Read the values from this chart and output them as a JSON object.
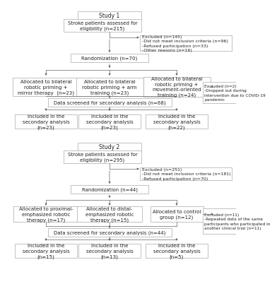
{
  "bg_color": "#ffffff",
  "box_color": "#ffffff",
  "box_edge": "#aaaaaa",
  "text_color": "#222222",
  "font_size": 5.0,
  "study1": {
    "title": "Study 1",
    "assess": "Stroke patients assessed for\neligibility (n=215)",
    "excluded": "Excluded (n=145)\n-Did not meet inclusion criteria (n=96)\n-Refused participation (n=33)\n-Other reasons (n=16)",
    "random": "Randomization (n=70)",
    "arm1": "Allocated to bilateral\nrobotic priming +\nmirror therapy  (n=23)",
    "arm2": "Allocated to bilateral\nrobotic priming + arm\ntraining (n=23)",
    "arm3": "Allocated to bilateral\nrobotic priming +\nmovement-oriented\ntraining (n=24)",
    "excl_side": "Excluded (n=2)\n-Dropped out during\nintervention due to COVID-19\npandemic",
    "screen": "Data screened for secondary analysis (n=68)",
    "incl1": "Included in the\nsecondary analysis\n(n=23)",
    "incl2": "Included in the\nsecondary analysis\n(n=23)",
    "incl3": "Included in the\nsecondary analysis\n(n=22)"
  },
  "study2": {
    "title": "Study 2",
    "assess": "Stroke patients assessed for\neligibility (n=295)",
    "excluded": "Excluded (n=251)\n-Did not meet inclusion criteria (n=181)\n-Refused participation (n=70)",
    "random": "Randomization (n=44)",
    "arm1": "Allocated to proximal-\nemphasized robotic\ntherapy (n=17)",
    "arm2": "Allocated to distal-\nemphasized robotic\ntherapy (n=15)",
    "arm3": "Allocated to control\ngroup (n=12)",
    "excl_side": "Excluded (n=11)\n-Repeated data of the same\nparticipants who participated in\nanother clinical trial (n=11)",
    "screen": "Data screened for secondary analysis (n=44)",
    "incl1": "Included in the\nsecondary analysis\n(n=15)",
    "incl2": "Included in the\nsecondary analysis\n(n=13)",
    "incl3": "Included in the\nsecondary analysis\n(n=5)"
  }
}
